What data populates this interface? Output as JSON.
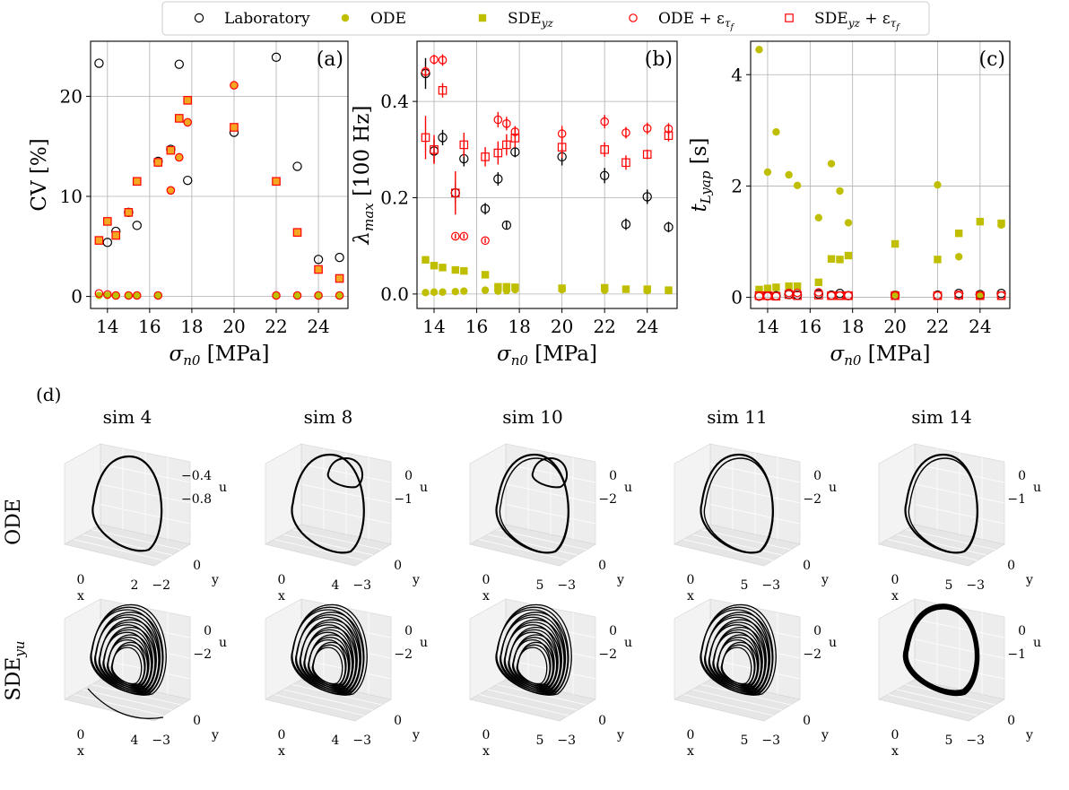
{
  "legend": {
    "items": [
      {
        "label": "Laboratory",
        "marker": "open-circle",
        "color": "#000000"
      },
      {
        "label": "ODE",
        "marker": "filled-circle",
        "color": "#bfbf00"
      },
      {
        "label": "SDE",
        "sub": "yz",
        "marker": "filled-square",
        "color": "#bfbf00"
      },
      {
        "label": "ODE + ε",
        "sub": "τ_f",
        "marker": "open-circle",
        "color": "#ff0000"
      },
      {
        "label": "SDE",
        "sub2": "yz",
        "tail": " + ε",
        "sub": "τ_f",
        "marker": "open-square",
        "color": "#ff0000"
      }
    ]
  },
  "colors": {
    "lab": "#000000",
    "model": "#bfbf00",
    "noise": "#ff0000",
    "noise_fill": "#f5a623"
  },
  "chart_data": [
    {
      "panel": "(a)",
      "type": "scatter",
      "ylabel": "CV [%]",
      "ylabel_text": "CV [%]",
      "xlabel_sym": "σ",
      "xlabel_sub": "n0",
      "xlabel_unit": " [MPa]",
      "xlim": [
        13.2,
        25.4
      ],
      "ylim": [
        -1.2,
        25.5
      ],
      "xticks": [
        14,
        16,
        18,
        20,
        22,
        24
      ],
      "yticks": [
        0,
        10,
        20
      ],
      "grid": true,
      "series": [
        {
          "name": "Laboratory",
          "marker": "open-circle",
          "x": [
            13.6,
            14.0,
            14.4,
            15.0,
            15.4,
            16.4,
            17.0,
            17.4,
            17.8,
            20.0,
            22.0,
            23.0,
            24.0,
            25.0
          ],
          "y": [
            23.3,
            5.4,
            6.5,
            8.4,
            7.1,
            13.5,
            14.7,
            23.2,
            11.6,
            16.4,
            23.9,
            13.0,
            3.7,
            3.9
          ]
        },
        {
          "name": "ODE",
          "marker": "filled-circle",
          "x": [
            13.6,
            14.0,
            14.4,
            15.0,
            15.4,
            16.4,
            17.0,
            17.4,
            17.8,
            20.0,
            22.0,
            23.0,
            24.0,
            25.0
          ],
          "y": [
            0.1,
            0.1,
            0.1,
            0.1,
            0.1,
            0.1,
            10.6,
            13.9,
            17.4,
            21.1,
            0.1,
            0.1,
            0.1,
            0.1
          ]
        },
        {
          "name": "SDE_yz",
          "marker": "filled-square",
          "x": [
            13.6,
            14.0,
            14.4,
            15.0,
            15.4,
            16.4,
            17.0,
            17.4,
            17.8,
            20.0,
            22.0,
            23.0,
            24.0,
            25.0
          ],
          "y": [
            5.6,
            7.5,
            6.1,
            8.4,
            11.5,
            13.4,
            14.6,
            17.8,
            19.6,
            16.9,
            11.5,
            6.4,
            2.7,
            1.8
          ]
        },
        {
          "name": "ODE + ε_τf",
          "marker": "open-circle-red",
          "x": [
            13.6,
            14.0,
            14.4,
            15.0,
            15.4,
            16.4,
            17.0,
            17.4,
            17.8,
            20.0,
            22.0,
            23.0,
            24.0,
            25.0
          ],
          "y": [
            0.3,
            0.2,
            0.1,
            0.1,
            0.1,
            0.1,
            10.6,
            13.9,
            17.4,
            21.1,
            0.1,
            0.1,
            0.1,
            0.1
          ]
        },
        {
          "name": "SDE_yz + ε_τf",
          "marker": "open-square-red",
          "x": [
            13.6,
            14.0,
            14.4,
            15.0,
            15.4,
            16.4,
            17.0,
            17.4,
            17.8,
            20.0,
            22.0,
            23.0,
            24.0,
            25.0
          ],
          "y": [
            5.6,
            7.5,
            6.1,
            8.4,
            11.5,
            13.4,
            14.6,
            17.8,
            19.6,
            16.9,
            11.5,
            6.4,
            2.7,
            1.8
          ]
        }
      ]
    },
    {
      "panel": "(b)",
      "type": "scatter",
      "ylabel_sym": "λ",
      "ylabel_sub": "max",
      "ylabel_unit": " [100 Hz]",
      "xlabel_sym": "σ",
      "xlabel_sub": "n0",
      "xlabel_unit": " [MPa]",
      "xlim": [
        13.2,
        25.4
      ],
      "ylim": [
        -0.03,
        0.525
      ],
      "xticks": [
        14,
        16,
        18,
        20,
        22,
        24
      ],
      "yticks": [
        0.0,
        0.2,
        0.4
      ],
      "ytick_labels": [
        "0.0",
        "0.2",
        "0.4"
      ],
      "grid": true,
      "series": [
        {
          "name": "Laboratory",
          "marker": "open-circle",
          "x": [
            13.6,
            14.0,
            14.4,
            15.0,
            15.4,
            16.4,
            17.0,
            17.4,
            17.8,
            20.0,
            22.0,
            23.0,
            24.0,
            25.0
          ],
          "y": [
            0.458,
            0.297,
            0.325,
            0.21,
            0.281,
            0.177,
            0.239,
            0.143,
            0.295,
            0.285,
            0.246,
            0.145,
            0.202,
            0.139
          ],
          "err": [
            0.032,
            0.024,
            0.016,
            0.022,
            0.016,
            0.012,
            0.014,
            0.009,
            0.011,
            0.018,
            0.016,
            0.012,
            0.015,
            0.011
          ]
        },
        {
          "name": "ODE",
          "marker": "filled-circle",
          "x": [
            13.6,
            14.0,
            14.4,
            15.0,
            15.4,
            16.4,
            17.0,
            17.4,
            17.8,
            20.0,
            22.0,
            23.0,
            24.0,
            25.0
          ],
          "y": [
            0.003,
            0.004,
            0.004,
            0.005,
            0.006,
            0.008,
            0.006,
            0.007,
            0.009,
            0.009,
            0.008,
            0.01,
            0.007,
            0.007
          ]
        },
        {
          "name": "SDE_yz",
          "marker": "filled-square",
          "x": [
            13.6,
            14.0,
            14.4,
            15.0,
            15.4,
            16.4,
            17.0,
            17.4,
            17.8,
            20.0,
            22.0,
            23.0,
            24.0,
            25.0
          ],
          "y": [
            0.071,
            0.059,
            0.055,
            0.05,
            0.048,
            0.04,
            0.015,
            0.015,
            0.014,
            0.012,
            0.013,
            0.01,
            0.01,
            0.008
          ]
        },
        {
          "name": "ODE + ε_τf",
          "marker": "open-circle-red",
          "x": [
            13.6,
            14.0,
            14.4,
            15.0,
            15.4,
            16.4,
            17.0,
            17.4,
            17.8,
            20.0,
            22.0,
            23.0,
            24.0,
            25.0
          ],
          "y": [
            0.462,
            0.487,
            0.486,
            0.12,
            0.12,
            0.111,
            0.362,
            0.354,
            0.337,
            0.333,
            0.358,
            0.335,
            0.344,
            0.343
          ],
          "err": [
            0.01,
            0.01,
            0.012,
            0.005,
            0.005,
            0.005,
            0.016,
            0.014,
            0.012,
            0.016,
            0.014,
            0.012,
            0.012,
            0.012
          ]
        },
        {
          "name": "SDE_yz + ε_τf",
          "marker": "open-square-red",
          "x": [
            13.6,
            14.0,
            14.4,
            15.0,
            15.4,
            16.4,
            17.0,
            17.4,
            17.8,
            20.0,
            22.0,
            23.0,
            24.0,
            25.0
          ],
          "y": [
            0.325,
            0.3,
            0.423,
            0.21,
            0.31,
            0.285,
            0.293,
            0.31,
            0.324,
            0.305,
            0.3,
            0.273,
            0.29,
            0.329
          ],
          "err": [
            0.045,
            0.03,
            0.015,
            0.045,
            0.025,
            0.02,
            0.024,
            0.022,
            0.02,
            0.022,
            0.015,
            0.015,
            0.01,
            0.012
          ]
        }
      ]
    },
    {
      "panel": "(c)",
      "type": "scatter",
      "ylabel_sym": "t",
      "ylabel_sub": "Lyap",
      "ylabel_unit": " [s]",
      "xlabel_sym": "σ",
      "xlabel_sub": "n0",
      "xlabel_unit": " [MPa]",
      "xlim": [
        13.2,
        25.4
      ],
      "ylim": [
        -0.2,
        4.6
      ],
      "xticks": [
        14,
        16,
        18,
        20,
        22,
        24
      ],
      "yticks": [
        0,
        2,
        4
      ],
      "grid": true,
      "series": [
        {
          "name": "Laboratory",
          "marker": "open-circle",
          "x": [
            13.6,
            14.0,
            14.4,
            15.0,
            15.4,
            16.4,
            17.0,
            17.4,
            17.8,
            20.0,
            22.0,
            23.0,
            24.0,
            25.0
          ],
          "y": [
            0.02,
            0.03,
            0.03,
            0.05,
            0.04,
            0.06,
            0.04,
            0.07,
            0.03,
            0.04,
            0.04,
            0.07,
            0.05,
            0.07
          ]
        },
        {
          "name": "ODE",
          "marker": "filled-circle",
          "x": [
            13.6,
            14.0,
            14.4,
            15.0,
            15.4,
            16.4,
            17.0,
            17.4,
            17.8,
            20.0,
            22.0,
            23.0,
            24.0,
            25.0
          ],
          "y": [
            4.45,
            2.25,
            2.97,
            2.2,
            2.01,
            1.43,
            2.4,
            1.91,
            1.34,
            0.05,
            2.02,
            0.73,
            0.05,
            1.3
          ]
        },
        {
          "name": "SDE_yz",
          "marker": "filled-square",
          "x": [
            13.6,
            14.0,
            14.4,
            15.0,
            15.4,
            16.4,
            17.0,
            17.4,
            17.8,
            20.0,
            22.0,
            23.0,
            24.0,
            25.0
          ],
          "y": [
            0.14,
            0.16,
            0.18,
            0.2,
            0.2,
            0.27,
            0.69,
            0.68,
            0.75,
            0.96,
            0.68,
            1.15,
            1.36,
            1.33
          ]
        },
        {
          "name": "ODE + ε_τf",
          "marker": "open-circle-red",
          "x": [
            13.6,
            14.0,
            14.4,
            15.0,
            15.4,
            16.4,
            17.0,
            17.4,
            17.8,
            20.0,
            22.0,
            23.0,
            24.0,
            25.0
          ],
          "y": [
            0.02,
            0.02,
            0.02,
            0.08,
            0.08,
            0.09,
            0.03,
            0.03,
            0.03,
            0.03,
            0.03,
            0.03,
            0.03,
            0.03
          ]
        },
        {
          "name": "SDE_yz + ε_τf",
          "marker": "open-square-red",
          "x": [
            13.6,
            14.0,
            14.4,
            15.0,
            15.4,
            16.4,
            17.0,
            17.4,
            17.8,
            20.0,
            22.0,
            23.0,
            24.0,
            25.0
          ],
          "y": [
            0.03,
            0.03,
            0.02,
            0.05,
            0.03,
            0.04,
            0.03,
            0.03,
            0.03,
            0.03,
            0.03,
            0.04,
            0.03,
            0.03
          ]
        }
      ]
    }
  ],
  "panel_d": {
    "label": "(d)",
    "row_labels": [
      {
        "text": "ODE",
        "sub": ""
      },
      {
        "text": "SDE",
        "sub": "yu"
      }
    ],
    "columns": [
      {
        "title": "sim 4",
        "ode": {
          "u_ticks": [
            "−0.4",
            "−0.8"
          ],
          "x_ticks": [
            "0",
            "2"
          ],
          "y_ticks": [
            "0",
            "−2"
          ],
          "shape": "simple"
        },
        "sde": {
          "u_ticks": [
            "0",
            "−2"
          ],
          "x_ticks": [
            "0",
            "4"
          ],
          "y_ticks": [
            "0",
            "−3"
          ]
        }
      },
      {
        "title": "sim 8",
        "ode": {
          "u_ticks": [
            "0",
            "−1"
          ],
          "x_ticks": [
            "0",
            "4"
          ],
          "y_ticks": [
            "0",
            "−3"
          ],
          "shape": "double"
        },
        "sde": {
          "u_ticks": [
            "0",
            "−2"
          ],
          "x_ticks": [
            "0",
            "4"
          ],
          "y_ticks": [
            "0",
            "−3"
          ]
        }
      },
      {
        "title": "sim 10",
        "ode": {
          "u_ticks": [
            "0",
            "−2"
          ],
          "x_ticks": [
            "0",
            "5"
          ],
          "y_ticks": [
            "0",
            "−3"
          ],
          "shape": "double"
        },
        "sde": {
          "u_ticks": [
            "0",
            "−2"
          ],
          "x_ticks": [
            "0",
            "5"
          ],
          "y_ticks": [
            "0",
            "−3"
          ]
        }
      },
      {
        "title": "sim 11",
        "ode": {
          "u_ticks": [
            "0",
            "−2"
          ],
          "x_ticks": [
            "0",
            "5"
          ],
          "y_ticks": [
            "0",
            "−3"
          ],
          "shape": "simple"
        },
        "sde": {
          "u_ticks": [
            "0",
            "−2"
          ],
          "x_ticks": [
            "0",
            "5"
          ],
          "y_ticks": [
            "0",
            "−3"
          ]
        }
      },
      {
        "title": "sim 14",
        "ode": {
          "u_ticks": [
            "0",
            "−1"
          ],
          "x_ticks": [
            "0",
            "5"
          ],
          "y_ticks": [
            "0",
            "−3"
          ],
          "shape": "simple"
        },
        "sde": {
          "u_ticks": [
            "0",
            "−1"
          ],
          "x_ticks": [
            "0",
            "5"
          ],
          "y_ticks": [
            "0",
            "−3"
          ]
        }
      }
    ],
    "axis_letters": {
      "u": "u",
      "x": "x",
      "y": "y"
    }
  }
}
